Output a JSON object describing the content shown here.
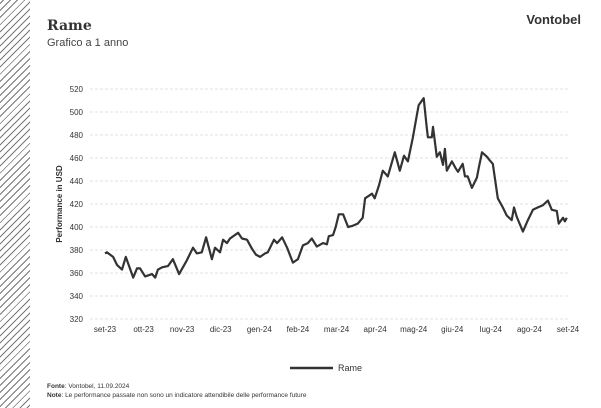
{
  "header": {
    "title": "Rame",
    "subtitle": "Grafico a 1 anno",
    "logo": "Vontobel"
  },
  "footer": {
    "source_label": "Fonte",
    "source_text": ": Vontobel, 11.09.2024",
    "note_label": "Note",
    "note_text": ": Le performance passate non sono un indicatore attendibile delle performance future"
  },
  "chart_data": {
    "type": "line",
    "title": "Rame",
    "subtitle": "Grafico a 1 anno",
    "xlabel": "",
    "ylabel": "Performance in USD",
    "ylim": [
      320,
      520
    ],
    "yticks": [
      320,
      340,
      360,
      380,
      400,
      420,
      440,
      460,
      480,
      500,
      520
    ],
    "categories": [
      "set-23",
      "ott-23",
      "nov-23",
      "dic-23",
      "gen-24",
      "feb-24",
      "mar-24",
      "apr-24",
      "mag-24",
      "giu-24",
      "lug-24",
      "ago-24",
      "set-24"
    ],
    "x_unit": "months since set-23",
    "grid": true,
    "legend_position": "bottom",
    "color": "#333333",
    "series": [
      {
        "name": "Rame",
        "points": [
          [
            0,
            377
          ],
          [
            0.05,
            378
          ],
          [
            0.21,
            374
          ],
          [
            0.31,
            367
          ],
          [
            0.44,
            363
          ],
          [
            0.54,
            374
          ],
          [
            0.73,
            356
          ],
          [
            0.83,
            364
          ],
          [
            0.91,
            364
          ],
          [
            1.04,
            357
          ],
          [
            1.22,
            359
          ],
          [
            1.3,
            356
          ],
          [
            1.37,
            363
          ],
          [
            1.48,
            365
          ],
          [
            1.63,
            366
          ],
          [
            1.76,
            372
          ],
          [
            1.92,
            359
          ],
          [
            2.12,
            371
          ],
          [
            2.28,
            382
          ],
          [
            2.38,
            377
          ],
          [
            2.51,
            378
          ],
          [
            2.62,
            391
          ],
          [
            2.77,
            372
          ],
          [
            2.85,
            382
          ],
          [
            2.98,
            378
          ],
          [
            3.06,
            389
          ],
          [
            3.16,
            386
          ],
          [
            3.24,
            390
          ],
          [
            3.45,
            395
          ],
          [
            3.55,
            390
          ],
          [
            3.68,
            389
          ],
          [
            3.81,
            381
          ],
          [
            3.91,
            376
          ],
          [
            4.02,
            374
          ],
          [
            4.15,
            377
          ],
          [
            4.22,
            378
          ],
          [
            4.38,
            389
          ],
          [
            4.46,
            386
          ],
          [
            4.59,
            391
          ],
          [
            4.72,
            382
          ],
          [
            4.87,
            369
          ],
          [
            5.0,
            372
          ],
          [
            5.13,
            384
          ],
          [
            5.26,
            386
          ],
          [
            5.36,
            390
          ],
          [
            5.49,
            383
          ],
          [
            5.65,
            386
          ],
          [
            5.75,
            385
          ],
          [
            5.8,
            392
          ],
          [
            5.91,
            393
          ],
          [
            5.98,
            400
          ],
          [
            6.06,
            411
          ],
          [
            6.17,
            411
          ],
          [
            6.3,
            400
          ],
          [
            6.42,
            401
          ],
          [
            6.55,
            403
          ],
          [
            6.68,
            408
          ],
          [
            6.74,
            425
          ],
          [
            6.92,
            429
          ],
          [
            6.99,
            425
          ],
          [
            7.1,
            436
          ],
          [
            7.2,
            449
          ],
          [
            7.33,
            444
          ],
          [
            7.51,
            465
          ],
          [
            7.64,
            449
          ],
          [
            7.75,
            462
          ],
          [
            7.85,
            457
          ],
          [
            7.98,
            478
          ],
          [
            8.08,
            497
          ],
          [
            8.13,
            506
          ],
          [
            8.26,
            512
          ],
          [
            8.34,
            486
          ],
          [
            8.37,
            478
          ],
          [
            8.47,
            478
          ],
          [
            8.5,
            487
          ],
          [
            8.6,
            461
          ],
          [
            8.68,
            465
          ],
          [
            8.76,
            454
          ],
          [
            8.81,
            468
          ],
          [
            8.86,
            449
          ],
          [
            8.99,
            457
          ],
          [
            9.09,
            451
          ],
          [
            9.15,
            448
          ],
          [
            9.27,
            455
          ],
          [
            9.33,
            444
          ],
          [
            9.4,
            444
          ],
          [
            9.51,
            434
          ],
          [
            9.64,
            443
          ],
          [
            9.69,
            452
          ],
          [
            9.77,
            465
          ],
          [
            9.9,
            461
          ],
          [
            9.97,
            458
          ],
          [
            10.05,
            455
          ],
          [
            10.18,
            425
          ],
          [
            10.31,
            417
          ],
          [
            10.41,
            410
          ],
          [
            10.54,
            406
          ],
          [
            10.6,
            417
          ],
          [
            10.67,
            409
          ],
          [
            10.83,
            396
          ],
          [
            10.96,
            406
          ],
          [
            11.09,
            415
          ],
          [
            11.22,
            417
          ],
          [
            11.35,
            419
          ],
          [
            11.48,
            423
          ],
          [
            11.58,
            415
          ],
          [
            11.71,
            414
          ],
          [
            11.76,
            403
          ],
          [
            11.87,
            408
          ],
          [
            11.92,
            405
          ],
          [
            11.97,
            408
          ]
        ]
      }
    ]
  }
}
